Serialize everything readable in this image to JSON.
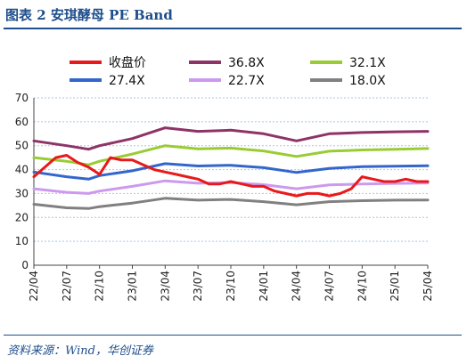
{
  "figure": {
    "title": "图表 2 安琪酵母 PE Band",
    "source": "资料来源：Wind，华创证券"
  },
  "colors": {
    "price": "#e8191b",
    "pe_36_8x": "#8e3366",
    "pe_32_1x": "#99cc33",
    "pe_27_4x": "#3366cc",
    "pe_22_7x": "#cc99ee",
    "pe_18_0x": "#808080",
    "accent": "#1f4e8c"
  },
  "chart_data": {
    "type": "line",
    "xlabel": "",
    "ylabel": "",
    "ylim": [
      0,
      70
    ],
    "yticks": [
      0,
      10,
      20,
      30,
      40,
      50,
      60,
      70
    ],
    "grid": "horizontal dashed",
    "legend_position": "top",
    "xlim": [
      "2022-04",
      "2025-04"
    ],
    "xticks": [
      "22/04",
      "22/07",
      "22/10",
      "23/01",
      "23/04",
      "23/07",
      "23/10",
      "24/01",
      "24/04",
      "24/07",
      "24/10",
      "25/01",
      "25/04"
    ],
    "series": [
      {
        "name": "收盘价",
        "color_key": "price",
        "width": 3,
        "x": [
          "2022-04",
          "2022-05",
          "2022-06",
          "2022-07",
          "2022-08",
          "2022-09",
          "2022-10",
          "2022-11",
          "2022-12",
          "2023-01",
          "2023-02",
          "2023-03",
          "2023-04",
          "2023-05",
          "2023-06",
          "2023-07",
          "2023-08",
          "2023-09",
          "2023-10",
          "2023-11",
          "2023-12",
          "2024-01",
          "2024-02",
          "2024-03",
          "2024-04",
          "2024-05",
          "2024-06",
          "2024-07",
          "2024-08",
          "2024-09",
          "2024-10",
          "2024-11",
          "2024-12",
          "2025-01",
          "2025-02",
          "2025-03",
          "2025-04"
        ],
        "y": [
          37,
          41,
          45,
          46,
          43,
          41,
          38,
          45,
          44,
          44,
          42,
          40,
          39,
          38,
          37,
          36,
          34,
          34,
          35,
          34,
          33,
          33,
          31,
          30,
          29,
          30,
          30,
          29,
          30,
          32,
          37,
          36,
          35,
          35,
          36,
          35,
          35
        ]
      },
      {
        "name": "36.8X",
        "color_key": "pe_36_8x",
        "width": 3,
        "x": [
          "2022-04",
          "2022-07",
          "2022-09",
          "2022-10",
          "2023-01",
          "2023-04",
          "2023-07",
          "2023-10",
          "2024-01",
          "2024-04",
          "2024-07",
          "2024-10",
          "2025-01",
          "2025-04"
        ],
        "y": [
          52,
          50,
          48.5,
          50,
          53,
          57.5,
          56,
          56.5,
          55,
          52,
          55,
          55.5,
          55.8,
          56
        ]
      },
      {
        "name": "32.1X",
        "color_key": "pe_32_1x",
        "width": 3,
        "x": [
          "2022-04",
          "2022-07",
          "2022-09",
          "2022-10",
          "2023-01",
          "2023-04",
          "2023-07",
          "2023-10",
          "2024-01",
          "2024-04",
          "2024-07",
          "2024-10",
          "2025-01",
          "2025-04"
        ],
        "y": [
          45,
          43.5,
          42,
          43.5,
          46.5,
          50,
          48.7,
          49,
          47.8,
          45.5,
          47.7,
          48.2,
          48.5,
          48.8
        ]
      },
      {
        "name": "27.4X",
        "color_key": "pe_27_4x",
        "width": 3,
        "x": [
          "2022-04",
          "2022-07",
          "2022-09",
          "2022-10",
          "2023-01",
          "2023-04",
          "2023-07",
          "2023-10",
          "2024-01",
          "2024-04",
          "2024-07",
          "2024-10",
          "2025-01",
          "2025-04"
        ],
        "y": [
          39,
          37,
          36,
          37.5,
          39.5,
          42.5,
          41.5,
          41.8,
          40.8,
          38.8,
          40.5,
          41.2,
          41.4,
          41.6
        ]
      },
      {
        "name": "22.7X",
        "color_key": "pe_22_7x",
        "width": 3,
        "x": [
          "2022-04",
          "2022-07",
          "2022-09",
          "2022-10",
          "2023-01",
          "2023-04",
          "2023-07",
          "2023-10",
          "2024-01",
          "2024-04",
          "2024-07",
          "2024-10",
          "2025-01",
          "2025-04"
        ],
        "y": [
          32,
          30.5,
          30,
          31,
          33,
          35.3,
          34.3,
          34.6,
          33.7,
          32,
          33.6,
          34,
          34.2,
          34.4
        ]
      },
      {
        "name": "18.0X",
        "color_key": "pe_18_0x",
        "width": 3,
        "x": [
          "2022-04",
          "2022-07",
          "2022-09",
          "2022-10",
          "2023-01",
          "2023-04",
          "2023-07",
          "2023-10",
          "2024-01",
          "2024-04",
          "2024-07",
          "2024-10",
          "2025-01",
          "2025-04"
        ],
        "y": [
          25.5,
          24,
          23.7,
          24.5,
          26,
          28,
          27.2,
          27.5,
          26.6,
          25.3,
          26.6,
          27,
          27.2,
          27.3
        ]
      }
    ]
  }
}
